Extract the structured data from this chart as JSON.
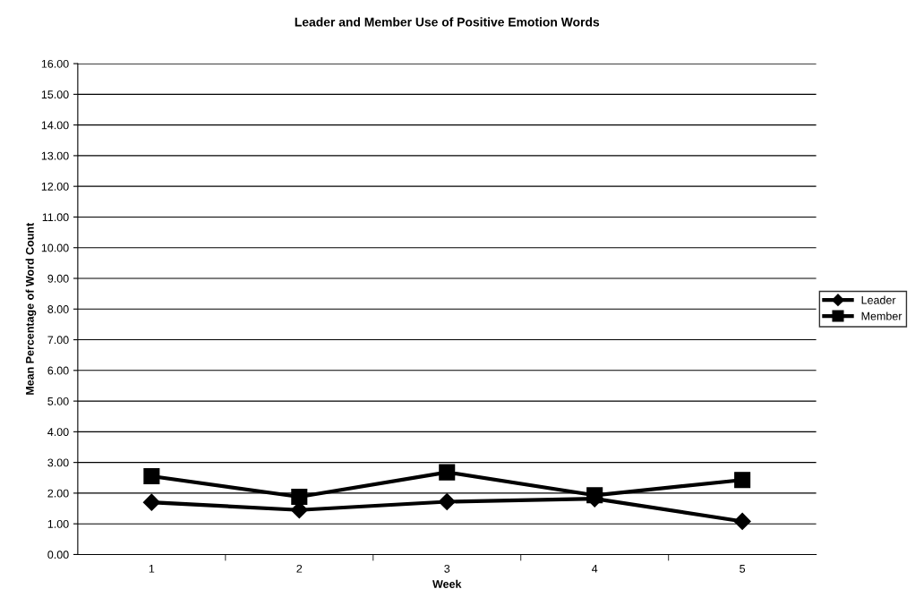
{
  "chart_data": {
    "type": "line",
    "title": "Leader and Member Use of Positive Emotion Words",
    "xlabel": "Week",
    "ylabel": "Mean Percentage of Word Count",
    "categories": [
      "1",
      "2",
      "3",
      "4",
      "5"
    ],
    "series": [
      {
        "name": "Leader",
        "color": "#000000",
        "marker": "diamond",
        "values": [
          1.7,
          1.45,
          1.72,
          1.82,
          1.08
        ]
      },
      {
        "name": "Member",
        "color": "#000000",
        "marker": "square",
        "values": [
          2.55,
          1.88,
          2.68,
          1.93,
          2.43
        ]
      }
    ],
    "ylim": [
      0,
      16
    ],
    "yticks": [
      {
        "value": 0,
        "label": "0.00"
      },
      {
        "value": 1,
        "label": "1.00"
      },
      {
        "value": 2,
        "label": "2.00"
      },
      {
        "value": 3,
        "label": "3.00"
      },
      {
        "value": 4,
        "label": "4.00"
      },
      {
        "value": 5,
        "label": "5.00"
      },
      {
        "value": 6,
        "label": "6.00"
      },
      {
        "value": 7,
        "label": "7.00"
      },
      {
        "value": 8,
        "label": "8.00"
      },
      {
        "value": 9,
        "label": "9.00"
      },
      {
        "value": 10,
        "label": "10.00"
      },
      {
        "value": 11,
        "label": "11.00"
      },
      {
        "value": 12,
        "label": "12.00"
      },
      {
        "value": 13,
        "label": "13.00"
      },
      {
        "value": 14,
        "label": "14.00"
      },
      {
        "value": 15,
        "label": "15.00"
      },
      {
        "value": 16,
        "label": "16.00"
      }
    ],
    "grid": "y",
    "legend": "right",
    "line_style": "solid"
  }
}
